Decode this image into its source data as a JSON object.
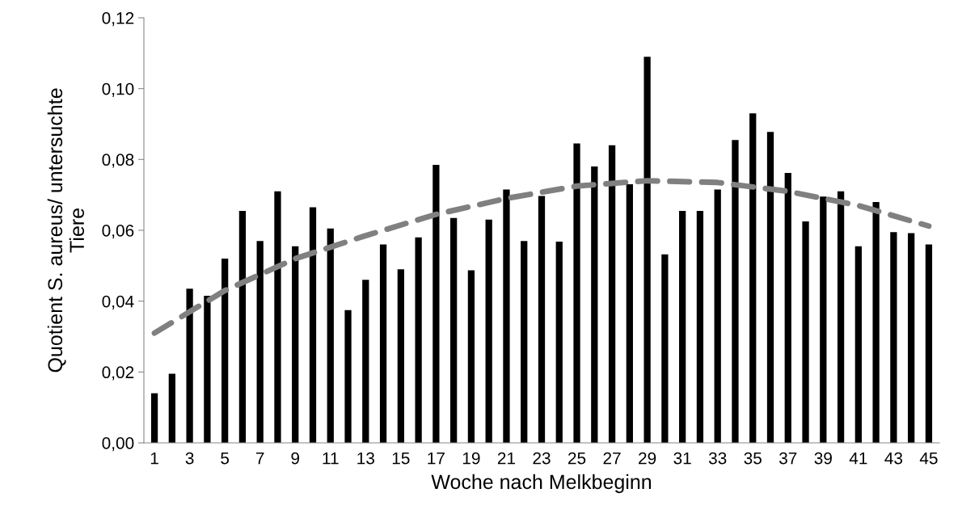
{
  "chart_data": {
    "type": "bar",
    "xlabel": "Woche nach Melkbeginn",
    "ylabel": "Quotient S. aureus/ untersuchte\nTiere",
    "categories": [
      "1",
      null,
      "3",
      null,
      "5",
      null,
      "7",
      null,
      "9",
      null,
      "11",
      null,
      "13",
      null,
      "15",
      null,
      "17",
      null,
      "19",
      null,
      "21",
      null,
      "23",
      null,
      "25",
      null,
      "27",
      null,
      "29",
      null,
      "31",
      null,
      "33",
      null,
      "35",
      null,
      "37",
      null,
      "39",
      null,
      "41",
      null,
      "43",
      null,
      "45"
    ],
    "series": [
      {
        "color": "#000000",
        "values": [
          0.014,
          0.0195,
          0.0435,
          0.0415,
          0.052,
          0.0655,
          0.057,
          0.071,
          0.0555,
          0.0665,
          0.0605,
          0.0375,
          0.046,
          0.056,
          0.049,
          0.058,
          0.0785,
          0.0635,
          0.0487,
          0.063,
          0.0715,
          0.057,
          0.0697,
          0.0568,
          0.0845,
          0.078,
          0.084,
          0.073,
          0.109,
          0.0532,
          0.0655,
          0.0655,
          0.0715,
          0.0855,
          0.093,
          0.0878,
          0.0762,
          0.0625,
          0.0695,
          0.071,
          0.0555,
          0.068,
          0.0595,
          0.0592,
          0.056
        ]
      },
      {
        "type": "line",
        "color": "#808080",
        "line_style": "dashed",
        "x": [
          "1",
          "5",
          "9",
          "13",
          "17",
          "21",
          "25",
          "29",
          "33",
          "37",
          "41",
          "45"
        ],
        "values": [
          0.031,
          0.043,
          0.052,
          0.0585,
          0.0645,
          0.069,
          0.0725,
          0.074,
          0.0735,
          0.071,
          0.067,
          0.0612
        ]
      }
    ],
    "ylim": [
      0,
      0.12
    ],
    "yticks": [
      {
        "value": 0,
        "label": "0,00"
      },
      {
        "value": 0.02,
        "label": "0,02"
      },
      {
        "value": 0.04,
        "label": "0,04"
      },
      {
        "value": 0.06,
        "label": "0,06"
      },
      {
        "value": 0.08,
        "label": "0,08"
      },
      {
        "value": 0.1,
        "label": "0,10"
      },
      {
        "value": 0.12,
        "label": "0,12"
      }
    ],
    "grid": false,
    "legend": false
  }
}
